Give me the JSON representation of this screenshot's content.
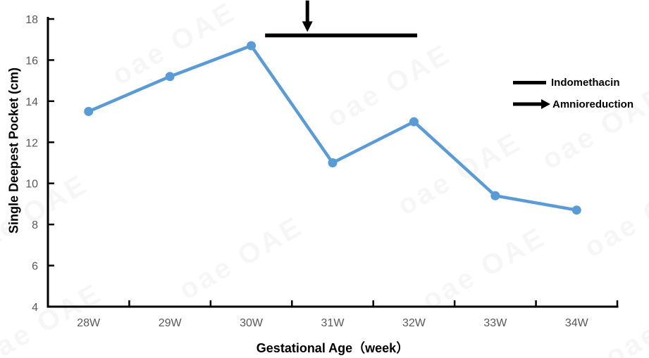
{
  "watermark_text": "oae OAE",
  "colors": {
    "series_blue": "#5B9BD5",
    "axis_black": "#000000",
    "tick_label_gray": "#595959",
    "annotation_black": "#000000",
    "background": "#ffffff"
  },
  "chart_data": {
    "type": "line",
    "title": "",
    "categories": [
      "28W",
      "29W",
      "30W",
      "31W",
      "32W",
      "33W",
      "34W"
    ],
    "series": [
      {
        "name": "Single Deepest Pocket",
        "values": [
          13.5,
          15.2,
          16.7,
          11.0,
          13.0,
          9.4,
          8.7
        ],
        "color": "#5B9BD5",
        "marker": "circle"
      }
    ],
    "xlabel": "Gestational Age（week）",
    "ylabel": "Single Deepest Pocket (cm)",
    "ylim": [
      4,
      18
    ],
    "yticks": [
      4,
      6,
      8,
      10,
      12,
      14,
      16,
      18
    ],
    "grid": false,
    "legend_position": "right-middle",
    "annotations": {
      "indomethacin_bar": {
        "label": "Indomethacin",
        "x_from_cat": 2.17,
        "x_to_cat": 4.04,
        "y_value": 17.2,
        "color": "#000000"
      },
      "amnioreduction_arrow": {
        "label": "Amnioreduction",
        "x_cat": 2.69,
        "y_from_value": 18.9,
        "y_tip_value": 17.37,
        "color": "#000000"
      }
    }
  },
  "legend": {
    "items": [
      {
        "label": "Indomethacin",
        "symbol": "black-bar-icon"
      },
      {
        "label": "Amnioreduction",
        "symbol": "black-arrow-icon"
      }
    ]
  }
}
